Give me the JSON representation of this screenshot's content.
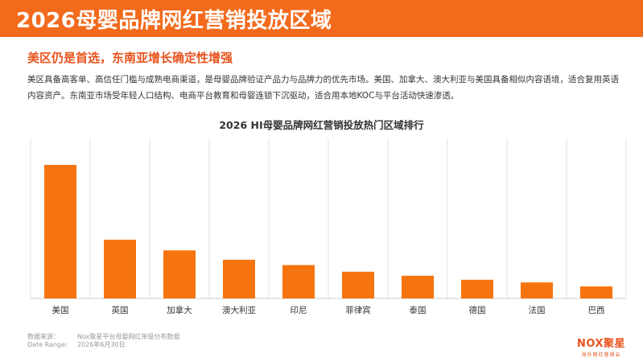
{
  "header": {
    "title": "2026母婴品牌网红营销投放区域"
  },
  "subtitle": "美区仍是首选，东南亚增长确定性增强",
  "description": "美区具备高客单、高信任门槛与成熟电商渠道，是母婴品牌验证产品力与品牌力的优先市场。美国、加拿大、澳大利亚与美国具备相似内容语境，适合复用英语内容资产。东南亚市场受年轻人口结构、电商平台教育和母婴连锁下沉驱动，适合用本地KOC与平台活动快速渗透。",
  "chart_data": {
    "type": "bar",
    "title": "2026 HI母婴品牌网红营销投放热门区域排行",
    "categories": [
      "美国",
      "英国",
      "加拿大",
      "澳大利亚",
      "印尼",
      "菲律宾",
      "泰国",
      "德国",
      "法国",
      "巴西"
    ],
    "values": [
      100,
      44,
      36,
      29,
      25,
      20,
      17,
      14,
      12,
      9
    ],
    "ylim": [
      0,
      100
    ],
    "xlabel": "",
    "ylabel": "",
    "grid": "vertical dividers",
    "bar_color": "#f6740f"
  },
  "footer": {
    "source_label": "数据来源：",
    "source_value": "Nox聚星平台母婴网红单级分布数据",
    "range_label": "Date Range:",
    "range_value": "2026年6月30日"
  },
  "brand": {
    "logo": "NOX聚星",
    "tagline": "海外网红营销云"
  }
}
